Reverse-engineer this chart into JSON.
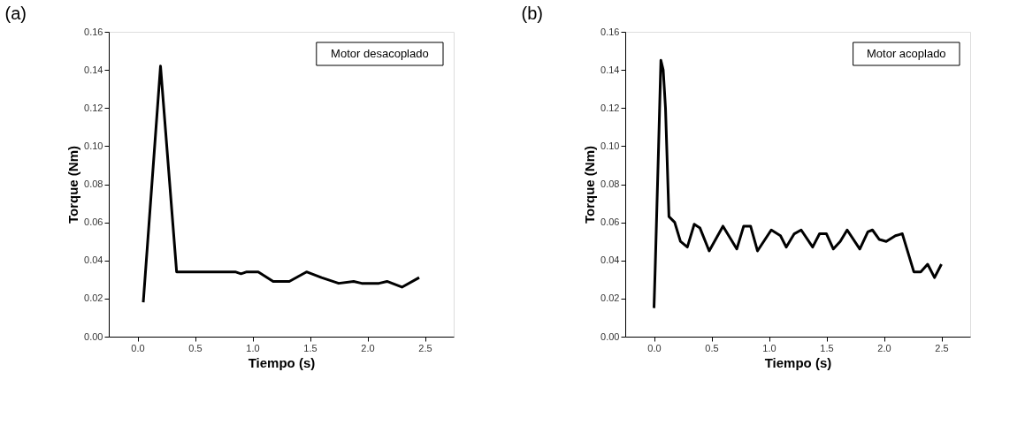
{
  "chart_data": [
    {
      "type": "line",
      "title": "(a)",
      "xlabel": "Tiempo (s)",
      "ylabel": "Torque (Nm)",
      "annotations": [
        "Motor desacoplado"
      ],
      "grid": false,
      "marker": "none",
      "line_style": "solid",
      "xlim": [
        -0.25,
        2.75
      ],
      "ylim": [
        0,
        0.16
      ],
      "xticks": [
        {
          "value": 0,
          "label": "0.0"
        },
        0.5,
        {
          "value": 1,
          "label": "1.0"
        },
        1.5,
        {
          "value": 2,
          "label": "2.0"
        },
        2.5
      ],
      "yticks": [
        {
          "value": 0,
          "label": "0.00"
        },
        0.02,
        0.04,
        0.06,
        0.08,
        {
          "value": 0.1,
          "label": "0.10"
        },
        0.12,
        0.14,
        0.16
      ],
      "series": [
        {
          "color": "#000000",
          "x": [
            0.05,
            0.2,
            0.34,
            0.6,
            0.85,
            0.9,
            0.95,
            1.05,
            1.18,
            1.32,
            1.47,
            1.6,
            1.75,
            1.88,
            1.95,
            2.1,
            2.17,
            2.3,
            2.45
          ],
          "values": [
            0.018,
            0.142,
            0.034,
            0.034,
            0.034,
            0.033,
            0.034,
            0.034,
            0.029,
            0.029,
            0.034,
            0.031,
            0.028,
            0.029,
            0.028,
            0.028,
            0.029,
            0.026,
            0.031
          ]
        }
      ]
    },
    {
      "type": "line",
      "title": "(b)",
      "xlabel": "Tiempo (s)",
      "ylabel": "Torque (Nm)",
      "annotations": [
        "Motor acoplado"
      ],
      "grid": false,
      "marker": "none",
      "line_style": "solid",
      "xlim": [
        -0.25,
        2.75
      ],
      "ylim": [
        0,
        0.16
      ],
      "xticks": [
        {
          "value": 0,
          "label": "0.0"
        },
        0.5,
        {
          "value": 1,
          "label": "1.0"
        },
        1.5,
        {
          "value": 2,
          "label": "2.0"
        },
        2.5
      ],
      "yticks": [
        {
          "value": 0,
          "label": "0.00"
        },
        0.02,
        0.04,
        0.06,
        0.08,
        {
          "value": 0.1,
          "label": "0.10"
        },
        0.12,
        0.14,
        0.16
      ],
      "series": [
        {
          "color": "#000000",
          "x": [
            0.0,
            0.01,
            0.04,
            0.06,
            0.08,
            0.1,
            0.13,
            0.18,
            0.23,
            0.29,
            0.35,
            0.4,
            0.48,
            0.6,
            0.72,
            0.78,
            0.84,
            0.9,
            1.02,
            1.1,
            1.15,
            1.22,
            1.28,
            1.38,
            1.44,
            1.5,
            1.56,
            1.62,
            1.68,
            1.79,
            1.86,
            1.9,
            1.96,
            2.02,
            2.1,
            2.16,
            2.26,
            2.32,
            2.38,
            2.44,
            2.5
          ],
          "values": [
            0.015,
            0.035,
            0.1,
            0.145,
            0.14,
            0.12,
            0.063,
            0.06,
            0.05,
            0.047,
            0.059,
            0.057,
            0.045,
            0.058,
            0.046,
            0.058,
            0.058,
            0.045,
            0.056,
            0.053,
            0.047,
            0.054,
            0.056,
            0.047,
            0.054,
            0.054,
            0.046,
            0.05,
            0.056,
            0.046,
            0.055,
            0.056,
            0.051,
            0.05,
            0.053,
            0.054,
            0.034,
            0.034,
            0.038,
            0.031,
            0.038
          ]
        }
      ]
    }
  ]
}
